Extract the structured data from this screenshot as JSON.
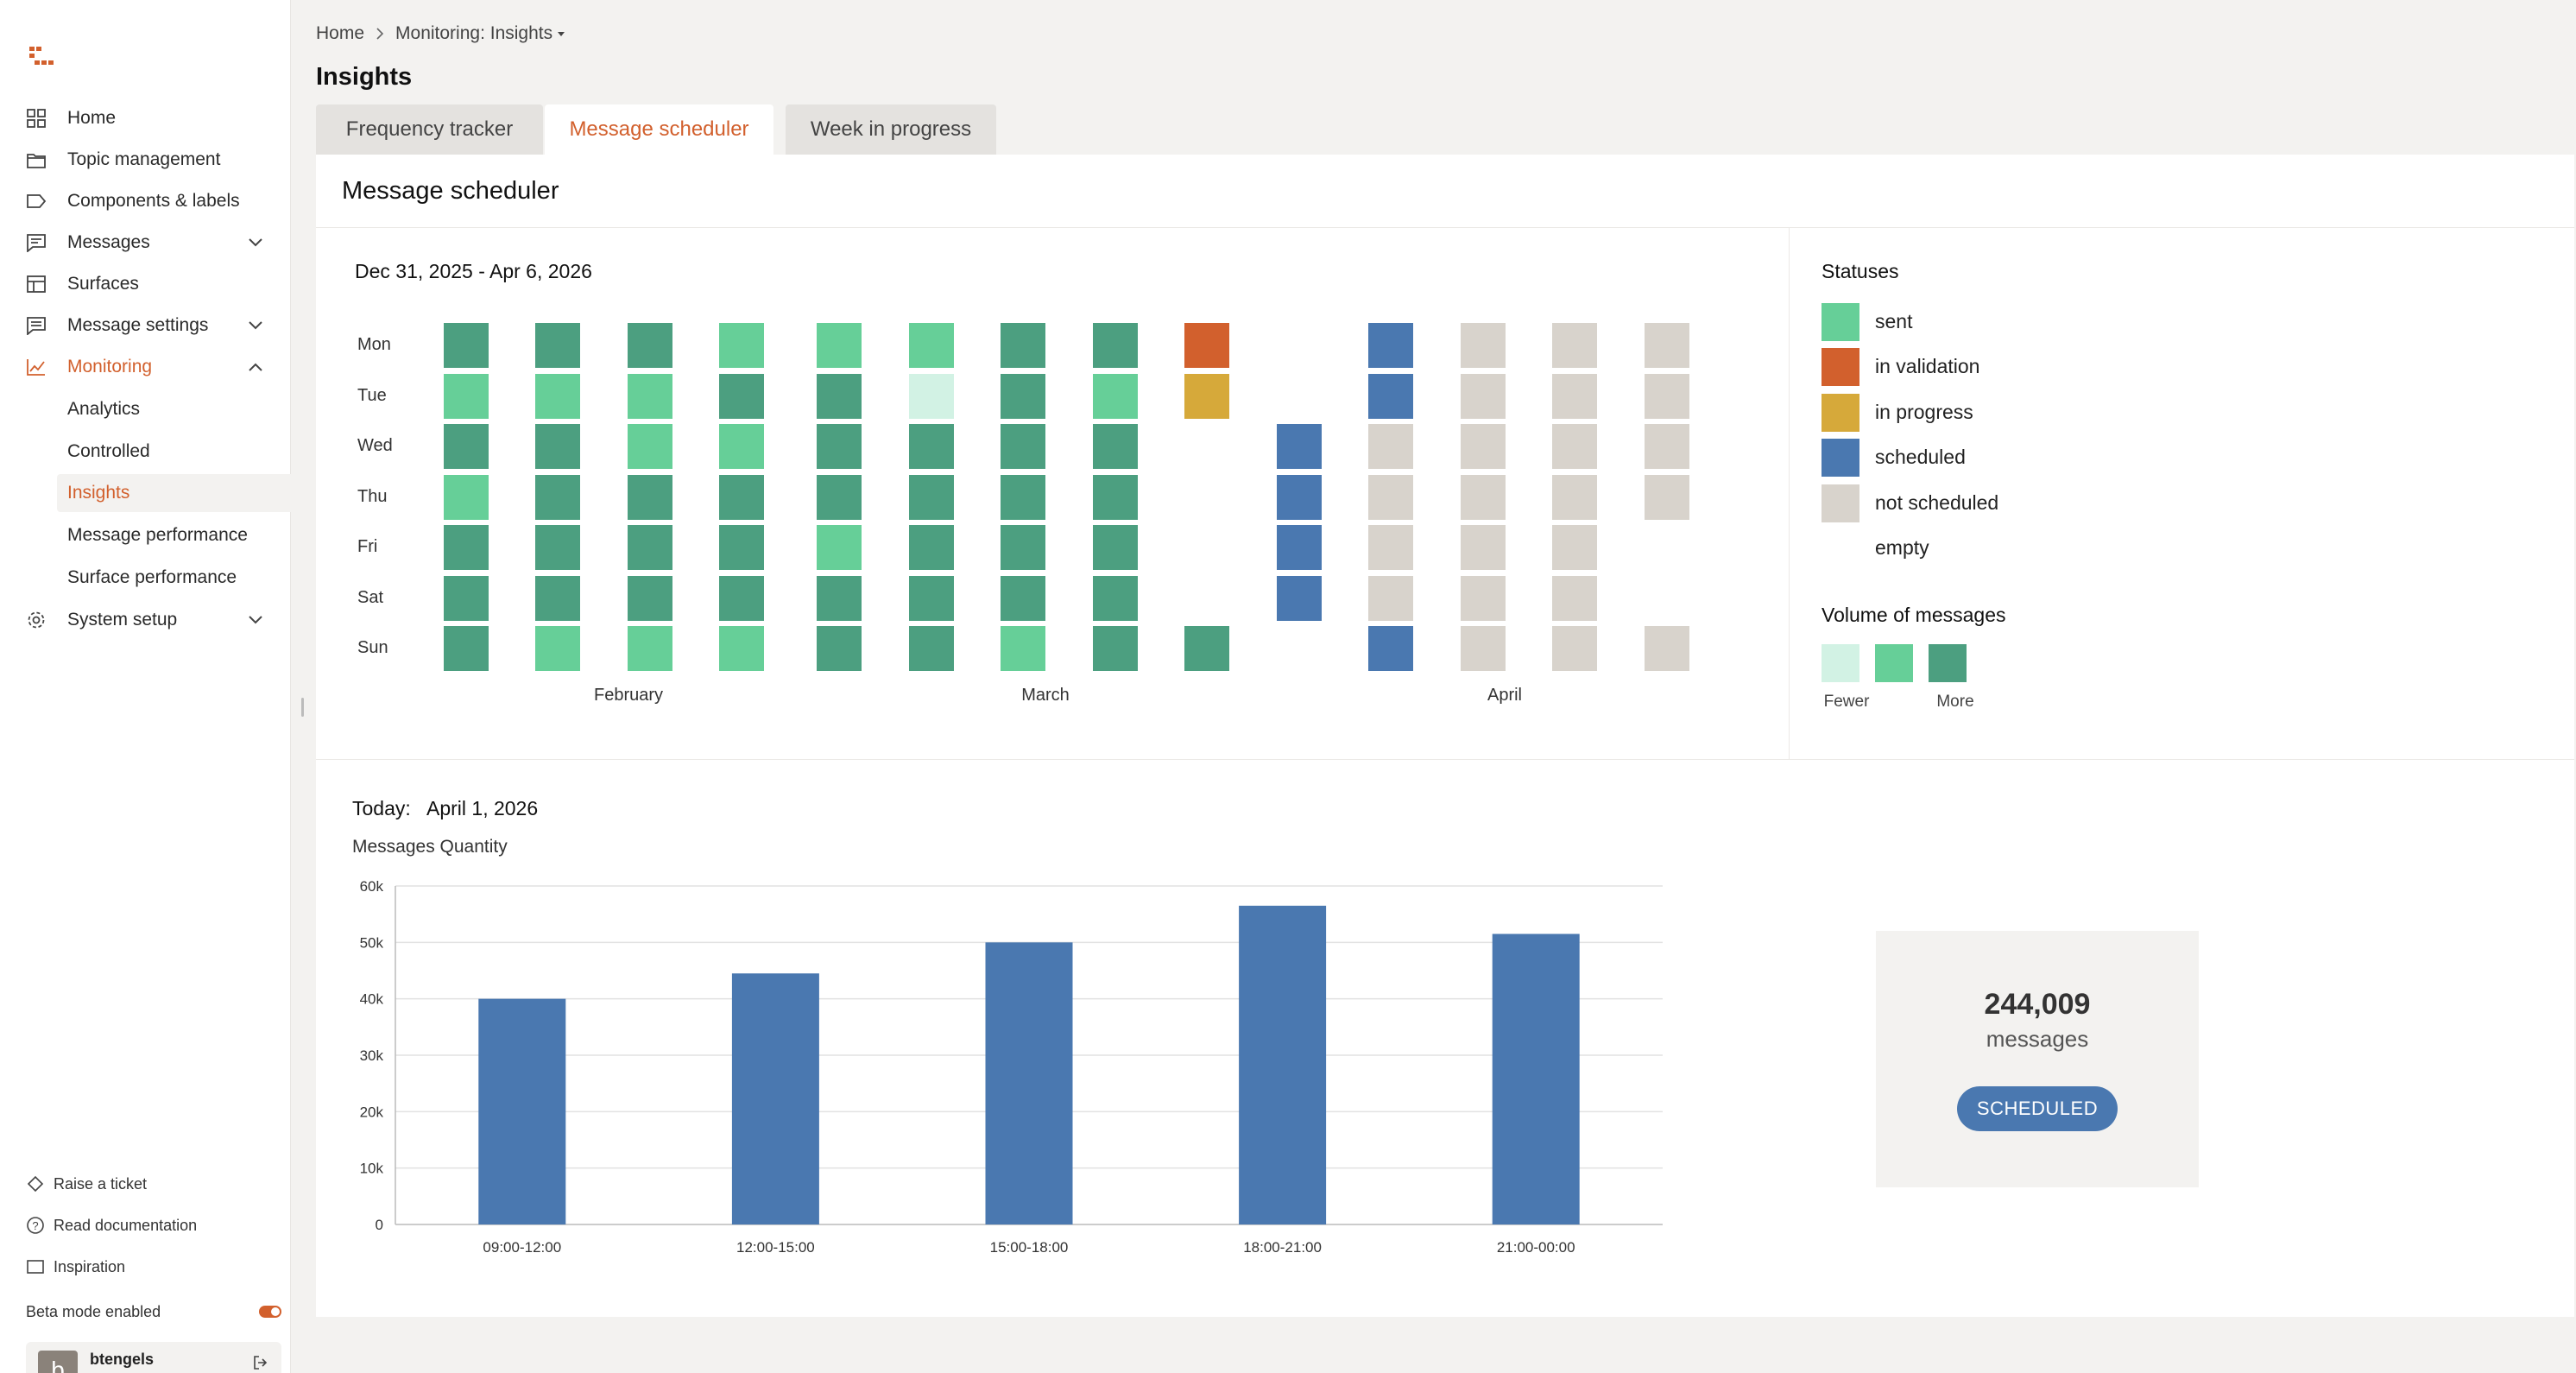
{
  "sidebar": {
    "items": [
      {
        "label": "Home",
        "icon": "grid-icon"
      },
      {
        "label": "Topic management",
        "icon": "folder-icon"
      },
      {
        "label": "Components & labels",
        "icon": "tag-icon"
      },
      {
        "label": "Messages",
        "icon": "message-icon"
      },
      {
        "label": "Surfaces",
        "icon": "layout-icon"
      },
      {
        "label": "Message settings",
        "icon": "message-settings-icon"
      },
      {
        "label": "Monitoring",
        "icon": "chart-line-icon"
      },
      {
        "label": "System setup",
        "icon": "gear-icon"
      }
    ],
    "monitoring_sub": [
      {
        "label": "Analytics"
      },
      {
        "label": "Controlled"
      },
      {
        "label": "Insights"
      },
      {
        "label": "Message performance"
      },
      {
        "label": "Surface performance"
      }
    ],
    "footer": {
      "raise_ticket": "Raise a ticket",
      "read_docs": "Read documentation",
      "inspiration": "Inspiration",
      "beta": "Beta mode enabled"
    },
    "user": {
      "initial": "b",
      "name": "btengels"
    }
  },
  "header": {
    "breadcrumb": [
      "Home",
      "Monitoring: Insights"
    ],
    "title": "Insights",
    "tabs": [
      "Frequency tracker",
      "Message scheduler",
      "Week in progress"
    ],
    "active_tab": 1
  },
  "colors": {
    "accent": "#d2602d",
    "more": "#4c9f80",
    "sent": "#66cf98",
    "fewer": "#d2f2e4",
    "in_validation": "#d2602d",
    "in_progress": "#d6a93a",
    "scheduled": "#4a78b0",
    "not_scheduled": "#d8d3cc"
  },
  "scheduler": {
    "title": "Message scheduler",
    "date_range": "Dec 31, 2025 - Apr 6, 2026",
    "days": [
      "Mon",
      "Tue",
      "Wed",
      "Thu",
      "Fri",
      "Sat",
      "Sun"
    ],
    "months": [
      "February",
      "March",
      "April"
    ],
    "weeks": [
      [
        "more",
        "sent",
        "more",
        "sent",
        "more",
        "more",
        "more"
      ],
      [
        "more",
        "sent",
        "more",
        "more",
        "more",
        "more",
        "sent"
      ],
      [
        "more",
        "sent",
        "sent",
        "more",
        "more",
        "more",
        "sent"
      ],
      [
        "sent",
        "more",
        "sent",
        "more",
        "more",
        "more",
        "sent"
      ],
      [
        "sent",
        "more",
        "more",
        "more",
        "sent",
        "more",
        "more"
      ],
      [
        "sent",
        "fewer",
        "more",
        "more",
        "more",
        "more",
        "more"
      ],
      [
        "more",
        "more",
        "more",
        "more",
        "more",
        "more",
        "sent"
      ],
      [
        "more",
        "sent",
        "more",
        "more",
        "more",
        "more",
        "more"
      ],
      [
        "in_validation",
        "in_progress",
        "empty",
        "empty",
        "empty",
        "empty",
        "more"
      ],
      [
        "empty",
        "empty",
        "scheduled",
        "scheduled",
        "scheduled",
        "scheduled",
        "empty"
      ],
      [
        "scheduled",
        "scheduled",
        "not_scheduled",
        "not_scheduled",
        "not_scheduled",
        "not_scheduled",
        "scheduled"
      ],
      [
        "not_scheduled",
        "not_scheduled",
        "not_scheduled",
        "not_scheduled",
        "not_scheduled",
        "not_scheduled",
        "not_scheduled"
      ],
      [
        "not_scheduled",
        "not_scheduled",
        "not_scheduled",
        "not_scheduled",
        "not_scheduled",
        "not_scheduled",
        "not_scheduled"
      ],
      [
        "not_scheduled",
        "not_scheduled",
        "not_scheduled",
        "not_scheduled",
        "empty",
        "empty",
        "not_scheduled"
      ]
    ]
  },
  "legend": {
    "statuses_title": "Statuses",
    "statuses": [
      {
        "key": "sent",
        "label": "sent"
      },
      {
        "key": "in_validation",
        "label": "in validation"
      },
      {
        "key": "in_progress",
        "label": "in progress"
      },
      {
        "key": "scheduled",
        "label": "scheduled"
      },
      {
        "key": "not_scheduled",
        "label": "not scheduled"
      },
      {
        "key": "empty",
        "label": "empty"
      }
    ],
    "volume_title": "Volume of messages",
    "volume_fewer": "Fewer",
    "volume_more": "More"
  },
  "today": {
    "label": "Today:",
    "date": "April 1, 2026"
  },
  "chart_data": {
    "type": "bar",
    "title": "",
    "ylabel": "Messages Quantity",
    "xlabel": "",
    "categories": [
      "09:00-12:00",
      "12:00-15:00",
      "15:00-18:00",
      "18:00-21:00",
      "21:00-00:00"
    ],
    "values": [
      40000,
      44500,
      50000,
      56500,
      51500
    ],
    "ylim": [
      0,
      60000
    ],
    "yticks": [
      0,
      10000,
      20000,
      30000,
      40000,
      50000,
      60000
    ],
    "ytick_labels": [
      "0",
      "10k",
      "20k",
      "30k",
      "40k",
      "50k",
      "60k"
    ],
    "grid": true,
    "color": "#4a78b0"
  },
  "summary": {
    "count": "244,009",
    "unit": "messages",
    "status": "SCHEDULED"
  }
}
